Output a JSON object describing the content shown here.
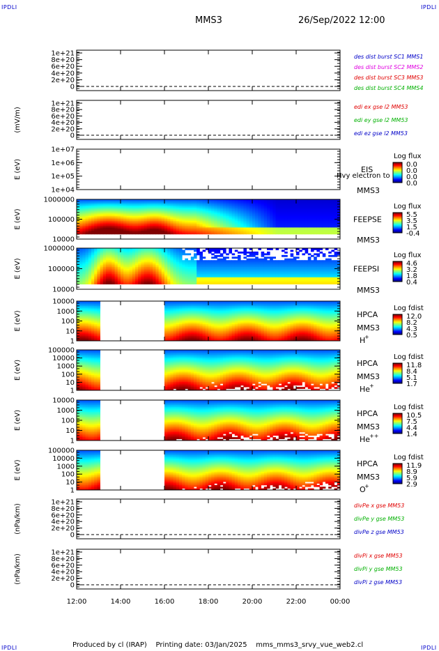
{
  "header": {
    "corner_label": "IPDLI",
    "mission": "MMS3",
    "datetime": "26/Sep/2022 12:00"
  },
  "footer": {
    "text": "Produced by cl (IRAP)    Printing date: 03/Jan/2025    mms_mms3_srvy_vue_web2.cl"
  },
  "colors": {
    "red": "#e00000",
    "green": "#00b000",
    "blue": "#0000c8",
    "magenta": "#e000e0"
  },
  "chart_data": [
    {
      "type": "line",
      "id": "p1",
      "ylabel": "",
      "yticks": [
        "1e+21",
        "8e+20",
        "6e+20",
        "4e+20",
        "2e+20",
        "0"
      ],
      "legend": [
        {
          "text": "des dist burst SC1 MMS1",
          "color": "#0000c8"
        },
        {
          "text": "des dist burst SC2 MMS2",
          "color": "#e000e0"
        },
        {
          "text": "des dist burst SC3 MMS3",
          "color": "#e00000"
        },
        {
          "text": "des dist burst SC4 MMS4",
          "color": "#00b000"
        }
      ],
      "series": []
    },
    {
      "type": "line",
      "id": "p2",
      "ylabel": "(mV/m)",
      "yticks": [
        "1e+21",
        "8e+20",
        "6e+20",
        "4e+20",
        "2e+20",
        "0"
      ],
      "legend": [
        {
          "text": "edi ex gse l2 MM53",
          "color": "#e00000"
        },
        {
          "text": "edi ey gse l2 MM53",
          "color": "#00b000"
        },
        {
          "text": "edi ez gse l2 MM53",
          "color": "#0000c8"
        }
      ],
      "series": []
    },
    {
      "type": "heatmap",
      "id": "p3",
      "ylabel": "E (eV)",
      "yticks": [
        "1e+07",
        "1e+06",
        "1e+05",
        "1e+04"
      ],
      "name": "EIS",
      "sub": "MMS3",
      "overlay": "Hvy electron to",
      "cbar_title": "Log flux",
      "cbar_ticks": [
        "0.0",
        "0.0",
        "0.0",
        "0.0"
      ],
      "empty": true
    },
    {
      "type": "heatmap",
      "id": "p4",
      "ylabel": "E (eV)",
      "yticks": [
        "1000000",
        "100000",
        "10000"
      ],
      "name": "FEEPSE",
      "sub": "MMS3",
      "cbar_title": "Log flux",
      "cbar_ticks": [
        "5.5",
        "3.5",
        "1.5",
        "-0.4"
      ]
    },
    {
      "type": "heatmap",
      "id": "p5",
      "ylabel": "E (eV)",
      "yticks": [
        "1000000",
        "100000",
        "10000"
      ],
      "name": "FEEPSI",
      "sub": "MMS3",
      "cbar_title": "Log flux",
      "cbar_ticks": [
        "4.6",
        "3.2",
        "1.8",
        "0.4"
      ]
    },
    {
      "type": "heatmap",
      "id": "p6",
      "ylabel": "E (eV)",
      "yticks": [
        "10000",
        "1000",
        "100",
        "10",
        "1"
      ],
      "name": "HPCA",
      "sub": "MMS3",
      "species": "H",
      "species_sup": "+",
      "cbar_title": "Log fdist",
      "cbar_ticks": [
        "12.0",
        "8.2",
        "4.3",
        "0.5"
      ],
      "gap": [
        "13:10",
        "15:55"
      ]
    },
    {
      "type": "heatmap",
      "id": "p7",
      "ylabel": "E (eV)",
      "yticks": [
        "100000",
        "10000",
        "1000",
        "100",
        "10",
        "1"
      ],
      "name": "HPCA",
      "sub": "MMS3",
      "species": "He",
      "species_sup": "+",
      "cbar_title": "Log fdist",
      "cbar_ticks": [
        "11.8",
        "8.4",
        "5.1",
        "1.7"
      ],
      "gap": [
        "13:10",
        "15:55"
      ]
    },
    {
      "type": "heatmap",
      "id": "p8",
      "ylabel": "E (eV)",
      "yticks": [
        "10000",
        "1000",
        "100",
        "10",
        "1"
      ],
      "name": "HPCA",
      "sub": "MMS3",
      "species": "He",
      "species_sup": "++",
      "cbar_title": "Log fdist",
      "cbar_ticks": [
        "10.5",
        "7.5",
        "4.4",
        "1.4"
      ],
      "gap": [
        "13:10",
        "15:55"
      ]
    },
    {
      "type": "heatmap",
      "id": "p9",
      "ylabel": "E (eV)",
      "yticks": [
        "100000",
        "10000",
        "1000",
        "100",
        "10",
        "1"
      ],
      "name": "HPCA",
      "sub": "MMS3",
      "species": "O",
      "species_sup": "+",
      "cbar_title": "Log fdist",
      "cbar_ticks": [
        "11.9",
        "8.9",
        "5.9",
        "2.9"
      ],
      "gap": [
        "13:10",
        "15:55"
      ]
    },
    {
      "type": "line",
      "id": "p10",
      "ylabel": "(nPa/km)",
      "yticks": [
        "1e+21",
        "8e+20",
        "6e+20",
        "4e+20",
        "2e+20",
        "0"
      ],
      "legend": [
        {
          "text": "divPe x gse MM53",
          "color": "#e00000"
        },
        {
          "text": "divPe y gse MM53",
          "color": "#00b000"
        },
        {
          "text": "divPe z gse MM53",
          "color": "#0000c8"
        }
      ],
      "series": []
    },
    {
      "type": "line",
      "id": "p11",
      "ylabel": "(nPa/km)",
      "yticks": [
        "1e+21",
        "8e+20",
        "6e+20",
        "4e+20",
        "2e+20",
        "0"
      ],
      "legend": [
        {
          "text": "divPi x gse MM53",
          "color": "#e00000"
        },
        {
          "text": "divPi y gse MM53",
          "color": "#00b000"
        },
        {
          "text": "divPi z gse MM53",
          "color": "#0000c8"
        }
      ],
      "series": []
    }
  ],
  "xaxis": {
    "ticks": [
      "12:00",
      "14:00",
      "16:00",
      "18:00",
      "20:00",
      "22:00",
      "00:00"
    ]
  }
}
